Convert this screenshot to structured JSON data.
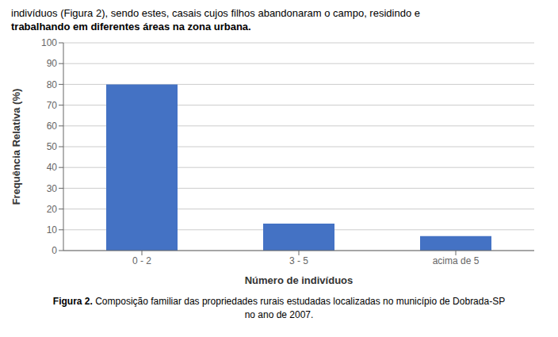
{
  "chart_data": {
    "type": "bar",
    "subtitle": [
      "indivíduos (Figura 2), sendo estes, casais cujos filhos abandonaram o campo, residindo e",
      "trabalhando em diferentes áreas na zona urbana."
    ],
    "title": "Figura 2.",
    "annotations": [
      "Composição familiar das propriedades rurais estudadas localizadas no município de Dobrada-SP",
      "no ano de 2007."
    ],
    "categories": [
      "0  -  2",
      "3  -  5",
      "acima de 5"
    ],
    "values": [
      80,
      13,
      7
    ],
    "color": "#4472C4",
    "xlabel": "Número de indivíduos",
    "ylabel": "Frequência Relativa (%)",
    "ylim": [
      0,
      100
    ],
    "yticks": [
      0,
      10,
      20,
      30,
      40,
      50,
      60,
      70,
      80,
      90,
      100
    ],
    "grid": true
  }
}
